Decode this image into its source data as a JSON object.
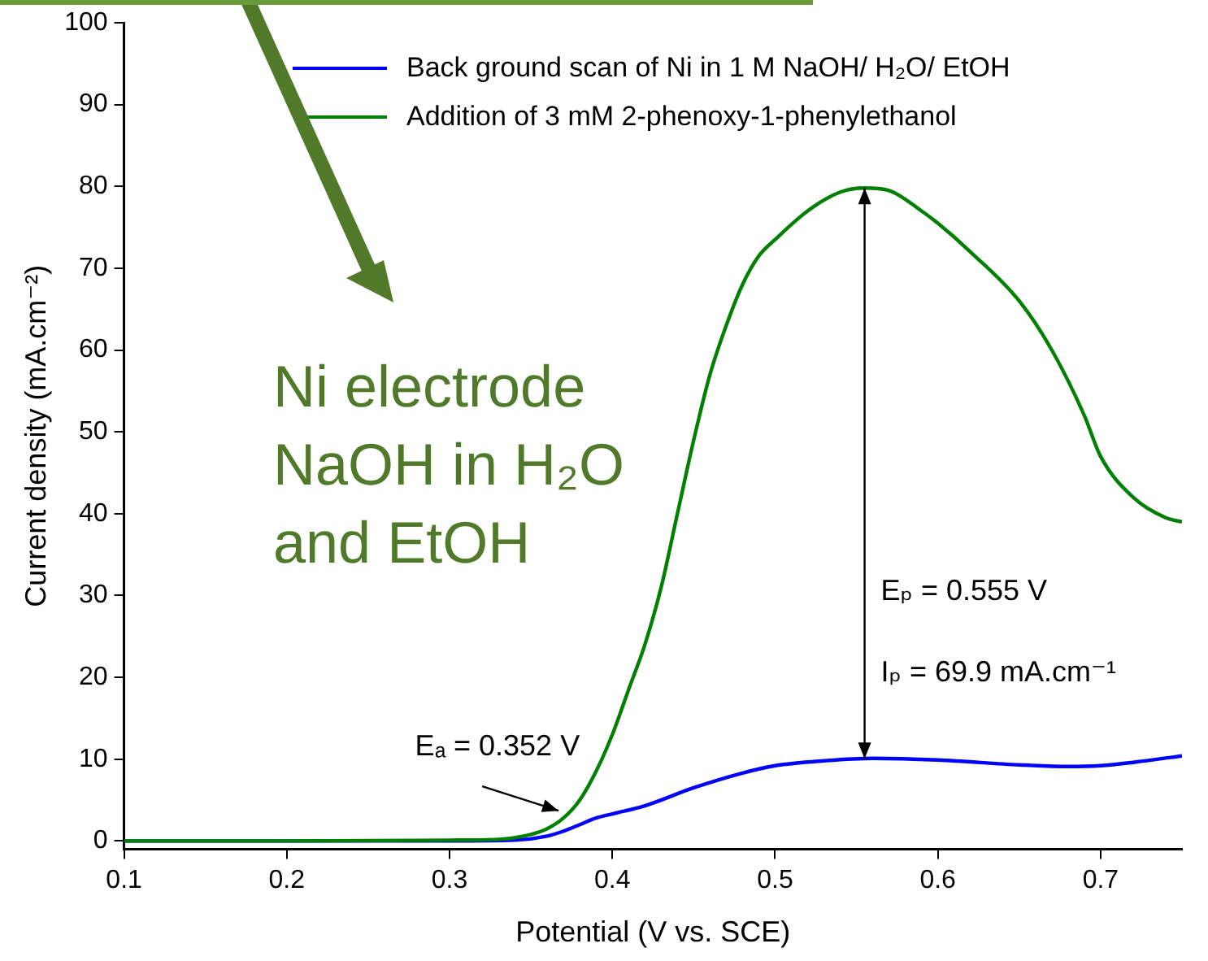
{
  "chart_data": {
    "type": "line",
    "xlabel": "Potential (V vs. SCE)",
    "ylabel": "Current density (mA.cm⁻²)",
    "xlim": [
      0.1,
      0.75
    ],
    "xticks": [
      0.1,
      0.2,
      0.3,
      0.4,
      0.5,
      0.6,
      0.7
    ],
    "ylim": [
      -1,
      100
    ],
    "yticks": [
      0,
      10,
      20,
      30,
      40,
      50,
      60,
      70,
      80,
      90,
      100
    ],
    "grid": false,
    "legend": "top left",
    "marker": "none",
    "line_style": "solid",
    "series": [
      {
        "name": "Back ground scan of Ni in 1 M NaOH/ H₂O/ EtOH",
        "color": "#0000ff",
        "x": [
          0.1,
          0.2,
          0.3,
          0.34,
          0.36,
          0.37,
          0.38,
          0.39,
          0.4,
          0.42,
          0.45,
          0.48,
          0.5,
          0.53,
          0.56,
          0.6,
          0.65,
          0.68,
          0.7,
          0.72,
          0.75
        ],
        "values": [
          0,
          0,
          0,
          0.1,
          0.6,
          1.2,
          2,
          2.8,
          3.3,
          4.3,
          6.5,
          8.3,
          9.2,
          9.8,
          10.1,
          9.9,
          9.3,
          9.1,
          9.2,
          9.6,
          10.4
        ]
      },
      {
        "name": "Addition of 3 mM 2-phenoxy-1-phenylethanol",
        "color": "#008000",
        "x": [
          0.1,
          0.2,
          0.3,
          0.33,
          0.35,
          0.36,
          0.37,
          0.38,
          0.39,
          0.4,
          0.41,
          0.42,
          0.43,
          0.44,
          0.45,
          0.46,
          0.47,
          0.48,
          0.49,
          0.5,
          0.52,
          0.54,
          0.555,
          0.57,
          0.59,
          0.6,
          0.62,
          0.65,
          0.67,
          0.69,
          0.7,
          0.72,
          0.74,
          0.75
        ],
        "values": [
          0,
          0,
          0.1,
          0.2,
          0.8,
          1.5,
          2.8,
          5,
          8.5,
          13,
          18.5,
          24,
          31,
          40,
          49,
          57,
          63,
          68,
          71.5,
          73.5,
          77,
          79.3,
          79.8,
          79.5,
          77,
          75.5,
          72,
          66,
          60,
          52,
          47,
          42,
          39.5,
          39
        ]
      }
    ],
    "annotations": [
      {
        "text": "Eₐ = 0.352 V",
        "x": 0.37,
        "y": 2.5
      },
      "Eₚ = 0.555 V",
      "Iₚ = 69.9 mA.cm⁻¹",
      "Ni electrode",
      "NaOH in H₂O",
      "and EtOH"
    ]
  }
}
